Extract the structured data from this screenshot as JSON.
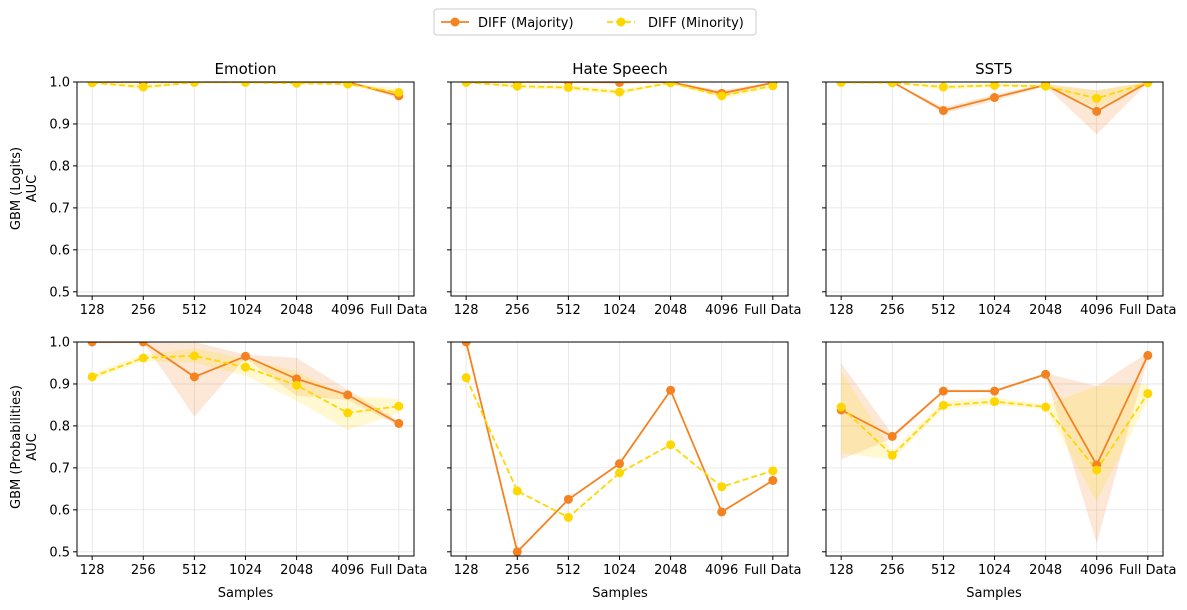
{
  "legend": {
    "items": [
      {
        "name": "DIFF (Majority)",
        "color": "#f58220",
        "style": "solid"
      },
      {
        "name": "DIFF (Minority)",
        "color": "#ffd700",
        "style": "dashed"
      }
    ]
  },
  "row_labels": [
    {
      "line1": "GBM (Logits)",
      "line2": "AUC"
    },
    {
      "line1": "GBM (Probabilities)",
      "line2": "AUC"
    }
  ],
  "column_titles": [
    "Emotion",
    "Hate Speech",
    "SST5"
  ],
  "xlabel": "Samples",
  "chart_data": [
    {
      "type": "line",
      "title": "Emotion",
      "ylabel": "GBM (Logits) AUC",
      "xlabel": "",
      "categories": [
        "128",
        "256",
        "512",
        "1024",
        "2048",
        "4096",
        "Full Data"
      ],
      "ylim": [
        0.49,
        1.0
      ],
      "yticks": [
        "0.5",
        "0.6",
        "0.7",
        "0.8",
        "0.9",
        "1.0"
      ],
      "series": [
        {
          "name": "DIFF (Majority)",
          "color": "#f58220",
          "values": [
            1.0,
            1.0,
            1.0,
            1.0,
            1.0,
            1.0,
            0.967
          ]
        },
        {
          "name": "DIFF (Minority)",
          "color": "#ffd700",
          "values": [
            0.998,
            0.988,
            0.999,
            0.999,
            0.997,
            0.995,
            0.975
          ]
        }
      ],
      "bands": [
        {
          "series": "DIFF (Majority)",
          "color": "#f58220",
          "lower": [
            1.0,
            1.0,
            1.0,
            1.0,
            1.0,
            1.0,
            0.96
          ],
          "upper": [
            1.0,
            1.0,
            1.0,
            1.0,
            1.0,
            1.0,
            0.975
          ]
        },
        {
          "series": "DIFF (Minority)",
          "color": "#ffd700",
          "lower": [
            0.998,
            0.982,
            0.998,
            0.998,
            0.996,
            0.993,
            0.965
          ],
          "upper": [
            1.0,
            0.995,
            1.0,
            1.0,
            0.998,
            0.997,
            0.985
          ]
        }
      ]
    },
    {
      "type": "line",
      "title": "Hate Speech",
      "ylabel": "",
      "xlabel": "",
      "categories": [
        "128",
        "256",
        "512",
        "1024",
        "2048",
        "4096",
        "Full Data"
      ],
      "ylim": [
        0.49,
        1.0
      ],
      "yticks": [
        "0.5",
        "0.6",
        "0.7",
        "0.8",
        "0.9",
        "1.0"
      ],
      "series": [
        {
          "name": "DIFF (Majority)",
          "color": "#f58220",
          "values": [
            1.0,
            1.0,
            1.0,
            0.999,
            1.0,
            0.973,
            0.998
          ]
        },
        {
          "name": "DIFF (Minority)",
          "color": "#ffd700",
          "values": [
            0.999,
            0.99,
            0.987,
            0.976,
            0.998,
            0.967,
            0.991
          ]
        }
      ],
      "bands": [
        {
          "series": "DIFF (Majority)",
          "color": "#f58220",
          "lower": [
            1.0,
            1.0,
            1.0,
            0.998,
            1.0,
            0.965,
            0.996
          ],
          "upper": [
            1.0,
            1.0,
            1.0,
            1.0,
            1.0,
            0.98,
            1.0
          ]
        },
        {
          "series": "DIFF (Minority)",
          "color": "#ffd700",
          "lower": [
            0.998,
            0.985,
            0.98,
            0.97,
            0.996,
            0.96,
            0.985
          ],
          "upper": [
            1.0,
            0.995,
            0.993,
            0.982,
            1.0,
            0.975,
            0.997
          ]
        }
      ]
    },
    {
      "type": "line",
      "title": "SST5",
      "ylabel": "",
      "xlabel": "",
      "categories": [
        "128",
        "256",
        "512",
        "1024",
        "2048",
        "4096",
        "Full Data"
      ],
      "ylim": [
        0.49,
        1.0
      ],
      "yticks": [
        "0.5",
        "0.6",
        "0.7",
        "0.8",
        "0.9",
        "1.0"
      ],
      "series": [
        {
          "name": "DIFF (Majority)",
          "color": "#f58220",
          "values": [
            1.0,
            1.0,
            0.932,
            0.963,
            0.993,
            0.93,
            0.999
          ]
        },
        {
          "name": "DIFF (Minority)",
          "color": "#ffd700",
          "values": [
            0.999,
            0.998,
            0.988,
            0.992,
            0.99,
            0.961,
            0.998
          ]
        }
      ],
      "bands": [
        {
          "series": "DIFF (Majority)",
          "color": "#f58220",
          "lower": [
            1.0,
            1.0,
            0.925,
            0.955,
            0.99,
            0.875,
            0.998
          ],
          "upper": [
            1.0,
            1.0,
            0.94,
            0.97,
            0.996,
            0.98,
            1.0
          ]
        },
        {
          "series": "DIFF (Minority)",
          "color": "#ffd700",
          "lower": [
            0.998,
            0.997,
            0.982,
            0.988,
            0.986,
            0.94,
            0.996
          ],
          "upper": [
            1.0,
            1.0,
            0.994,
            0.996,
            0.994,
            0.98,
            1.0
          ]
        }
      ]
    },
    {
      "type": "line",
      "title": "",
      "ylabel": "GBM (Probabilities) AUC",
      "xlabel": "Samples",
      "categories": [
        "128",
        "256",
        "512",
        "1024",
        "2048",
        "4096",
        "Full Data"
      ],
      "ylim": [
        0.49,
        1.0
      ],
      "yticks": [
        "0.5",
        "0.6",
        "0.7",
        "0.8",
        "0.9",
        "1.0"
      ],
      "series": [
        {
          "name": "DIFF (Majority)",
          "color": "#f58220",
          "values": [
            1.0,
            1.0,
            0.917,
            0.966,
            0.912,
            0.874,
            0.806
          ]
        },
        {
          "name": "DIFF (Minority)",
          "color": "#ffd700",
          "values": [
            0.917,
            0.962,
            0.967,
            0.94,
            0.897,
            0.831,
            0.847
          ]
        }
      ],
      "bands": [
        {
          "series": "DIFF (Majority)",
          "color": "#f58220",
          "lower": [
            1.0,
            1.0,
            0.822,
            0.962,
            0.872,
            0.862,
            0.8
          ],
          "upper": [
            1.0,
            1.0,
            1.0,
            0.97,
            0.962,
            0.886,
            0.812
          ]
        },
        {
          "series": "DIFF (Minority)",
          "color": "#ffd700",
          "lower": [
            0.91,
            0.955,
            0.95,
            0.92,
            0.86,
            0.79,
            0.83
          ],
          "upper": [
            0.925,
            0.97,
            0.985,
            0.96,
            0.93,
            0.87,
            0.865
          ]
        }
      ]
    },
    {
      "type": "line",
      "title": "",
      "ylabel": "",
      "xlabel": "Samples",
      "categories": [
        "128",
        "256",
        "512",
        "1024",
        "2048",
        "4096",
        "Full Data"
      ],
      "ylim": [
        0.49,
        1.0
      ],
      "yticks": [
        "0.5",
        "0.6",
        "0.7",
        "0.8",
        "0.9",
        "1.0"
      ],
      "series": [
        {
          "name": "DIFF (Majority)",
          "color": "#f58220",
          "values": [
            1.0,
            0.5,
            0.625,
            0.71,
            0.885,
            0.595,
            0.67
          ]
        },
        {
          "name": "DIFF (Minority)",
          "color": "#ffd700",
          "values": [
            0.915,
            0.645,
            0.582,
            0.688,
            0.755,
            0.655,
            0.693
          ]
        }
      ],
      "bands": []
    },
    {
      "type": "line",
      "title": "",
      "ylabel": "",
      "xlabel": "Samples",
      "categories": [
        "128",
        "256",
        "512",
        "1024",
        "2048",
        "4096",
        "Full Data"
      ],
      "ylim": [
        0.49,
        1.0
      ],
      "yticks": [
        "0.5",
        "0.6",
        "0.7",
        "0.8",
        "0.9",
        "1.0"
      ],
      "series": [
        {
          "name": "DIFF (Majority)",
          "color": "#f58220",
          "values": [
            0.838,
            0.775,
            0.883,
            0.883,
            0.923,
            0.707,
            0.968
          ]
        },
        {
          "name": "DIFF (Minority)",
          "color": "#ffd700",
          "values": [
            0.845,
            0.73,
            0.849,
            0.858,
            0.845,
            0.695,
            0.877
          ]
        }
      ],
      "bands": [
        {
          "series": "DIFF (Majority)",
          "color": "#f58220",
          "lower": [
            0.72,
            0.77,
            0.88,
            0.88,
            0.92,
            0.52,
            0.96
          ],
          "upper": [
            0.95,
            0.78,
            0.886,
            0.886,
            0.926,
            0.895,
            0.975
          ]
        },
        {
          "series": "DIFF (Minority)",
          "color": "#ffd700",
          "lower": [
            0.735,
            0.72,
            0.84,
            0.85,
            0.84,
            0.62,
            0.86
          ],
          "upper": [
            0.93,
            0.74,
            0.86,
            0.868,
            0.85,
            0.895,
            0.9
          ]
        }
      ]
    }
  ]
}
